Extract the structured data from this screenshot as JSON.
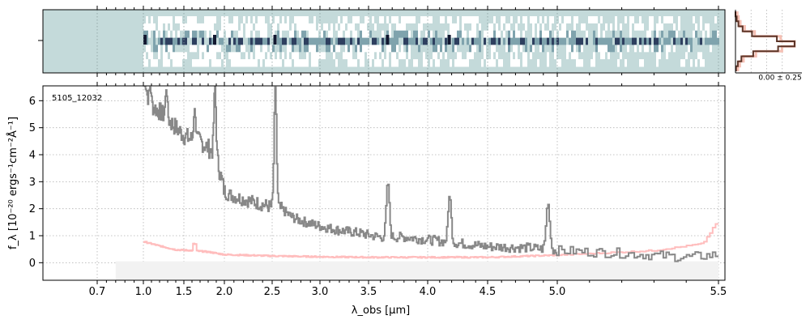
{
  "chart_data": [
    {
      "type": "heatmap",
      "role": "2d-spectrum",
      "title": "",
      "grid": true,
      "colormap": [
        "#ffffff",
        "#c4dada",
        "#7fa3ad",
        "#2e3f5f",
        "#121830"
      ],
      "trace_rows": [
        0.22,
        0.3,
        0.38,
        0.5,
        0.62,
        0.7,
        0.78
      ],
      "dark_features_um": [
        1.02,
        1.88,
        2.53,
        3.66,
        4.18
      ]
    },
    {
      "type": "line",
      "role": "profile",
      "annotation": "0.00 ± 0.25",
      "profile_x": [
        0.0,
        0.02,
        0.05,
        0.12,
        0.28,
        0.7,
        1.0,
        0.72,
        0.3,
        0.1,
        0.04,
        0.01
      ],
      "colors": {
        "profile": "#5c3528",
        "profile_light": "#f5c0b4"
      }
    },
    {
      "type": "line",
      "title": "",
      "ylabel": "f_λ [10⁻²⁰ ergs⁻¹cm⁻²Å⁻¹]",
      "xlabel": "λ_obs [μm]",
      "ylim": [
        -0.65,
        6.55
      ],
      "yticks": [
        0,
        1,
        2,
        3,
        4,
        5,
        6
      ],
      "xticks": [
        0.7,
        1.0,
        1.5,
        2.0,
        2.5,
        3.0,
        3.5,
        4.0,
        4.5,
        5.0,
        5.5
      ],
      "grid": true,
      "annotation": "5105_12032",
      "colors": {
        "flux": "#888888",
        "error": "#ffbdbd",
        "band": "#f2f2f2"
      },
      "flux_anchors": [
        [
          1.0,
          7.2
        ],
        [
          1.05,
          6.1
        ],
        [
          1.1,
          5.8
        ],
        [
          1.2,
          5.6
        ],
        [
          1.3,
          5.3
        ],
        [
          1.4,
          5.0
        ],
        [
          1.5,
          4.7
        ],
        [
          1.6,
          4.55
        ],
        [
          1.7,
          4.5
        ],
        [
          1.8,
          4.25
        ],
        [
          1.9,
          3.9
        ],
        [
          2.0,
          2.6
        ],
        [
          2.1,
          2.45
        ],
        [
          2.2,
          2.35
        ],
        [
          2.3,
          2.25
        ],
        [
          2.4,
          2.15
        ],
        [
          2.5,
          2.05
        ],
        [
          2.6,
          1.98
        ],
        [
          2.7,
          1.7
        ],
        [
          2.8,
          1.55
        ],
        [
          3.0,
          1.35
        ],
        [
          3.2,
          1.2
        ],
        [
          3.4,
          1.1
        ],
        [
          3.6,
          0.95
        ],
        [
          3.8,
          0.95
        ],
        [
          4.0,
          0.85
        ],
        [
          4.2,
          0.75
        ],
        [
          4.5,
          0.6
        ],
        [
          4.8,
          0.55
        ],
        [
          5.0,
          0.45
        ],
        [
          5.2,
          0.35
        ],
        [
          5.4,
          0.2
        ],
        [
          5.5,
          0.3
        ]
      ],
      "flux_lines": [
        {
          "x": 1.08,
          "peak": 6.5
        },
        {
          "x": 1.28,
          "peak": 6.4
        },
        {
          "x": 1.63,
          "peak": 5.7
        },
        {
          "x": 1.88,
          "peak": 6.6
        },
        {
          "x": 2.53,
          "peak": 6.5
        },
        {
          "x": 3.66,
          "peak": 3.0
        },
        {
          "x": 4.18,
          "peak": 2.5
        },
        {
          "x": 4.93,
          "peak": 2.2
        }
      ],
      "error_anchors": [
        [
          1.0,
          0.78
        ],
        [
          1.2,
          0.62
        ],
        [
          1.4,
          0.48
        ],
        [
          1.6,
          0.45
        ],
        [
          1.8,
          0.4
        ],
        [
          2.0,
          0.3
        ],
        [
          2.5,
          0.25
        ],
        [
          3.0,
          0.22
        ],
        [
          3.5,
          0.2
        ],
        [
          4.0,
          0.2
        ],
        [
          4.5,
          0.2
        ],
        [
          5.0,
          0.28
        ],
        [
          5.3,
          0.45
        ],
        [
          5.45,
          0.7
        ],
        [
          5.5,
          1.6
        ]
      ],
      "band_range_um": [
        0.82,
        5.5
      ]
    }
  ]
}
